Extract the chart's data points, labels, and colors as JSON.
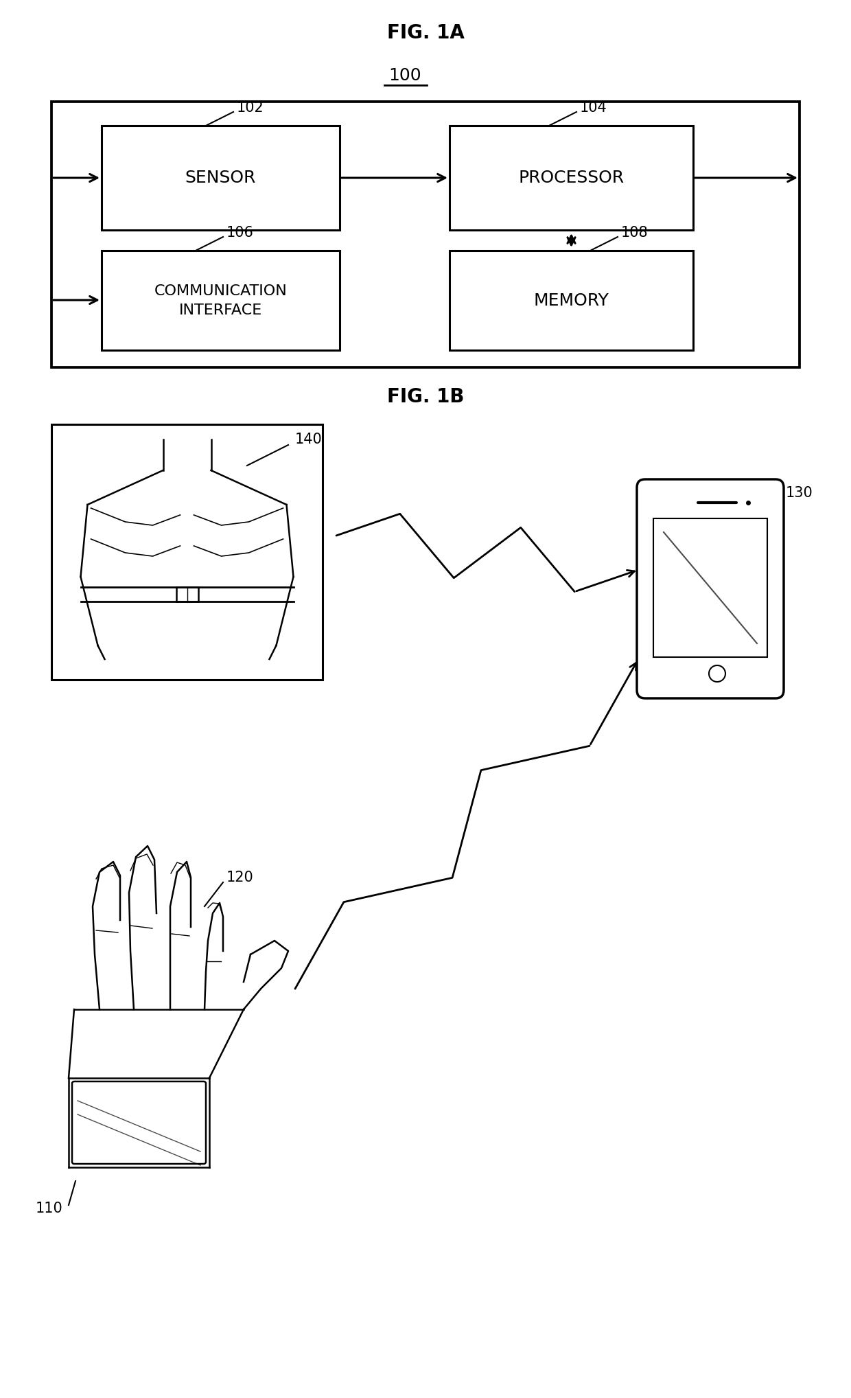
{
  "fig_title_a": "FIG. 1A",
  "fig_title_b": "FIG. 1B",
  "label_100": "100",
  "label_102": "102",
  "label_104": "104",
  "label_106": "106",
  "label_108": "108",
  "label_110": "110",
  "label_120": "120",
  "label_130": "130",
  "label_140": "140",
  "text_sensor": "SENSOR",
  "text_processor": "PROCESSOR",
  "text_comm": "COMMUNICATION\nINTERFACE",
  "text_memory": "MEMORY",
  "bg_color": "#ffffff",
  "box_color": "#000000",
  "text_color": "#000000",
  "font_size_title": 20,
  "font_size_label": 15,
  "font_size_box": 16
}
